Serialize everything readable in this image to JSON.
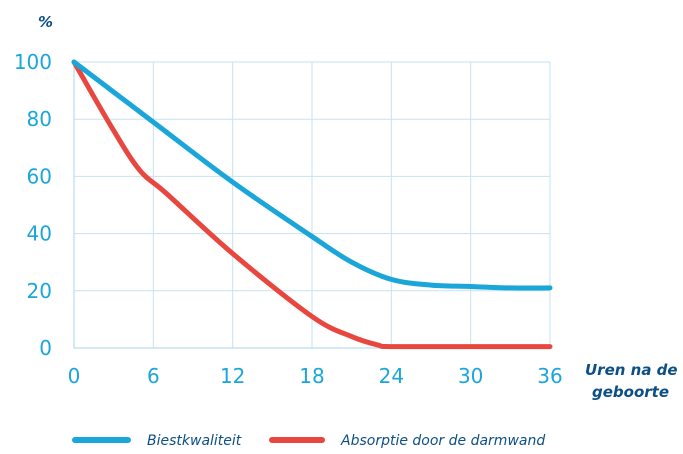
{
  "chart_data": {
    "type": "line",
    "ylabel": "%",
    "xlabel": [
      "Uren na de",
      "geboorte"
    ],
    "x_ticks": [
      0,
      6,
      12,
      18,
      24,
      30,
      36
    ],
    "y_ticks": [
      0,
      20,
      40,
      60,
      80,
      100
    ],
    "xlim": [
      0,
      36
    ],
    "ylim": [
      0,
      100
    ],
    "grid": true,
    "legend_position": "bottom",
    "series": [
      {
        "name": "Biestkwaliteit",
        "color": "#1aa6d9",
        "x": [
          0,
          6,
          12,
          18,
          21,
          24,
          27,
          30,
          33,
          36
        ],
        "y": [
          100,
          79,
          58,
          39,
          30,
          24,
          22,
          21.5,
          21,
          21
        ]
      },
      {
        "name": "Absorptie door de darmwand",
        "color": "#e8473f",
        "x": [
          0,
          3,
          5,
          7,
          12,
          18,
          21,
          23,
          24,
          30,
          36
        ],
        "y": [
          100,
          76,
          62,
          54,
          33,
          11,
          4,
          1,
          0.5,
          0.5,
          0.5
        ]
      }
    ]
  }
}
